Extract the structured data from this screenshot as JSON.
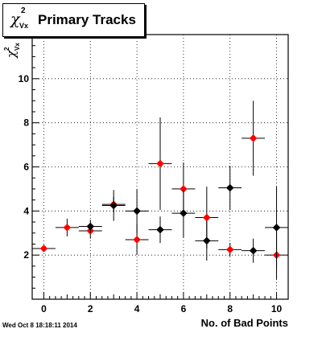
{
  "title": {
    "symbol": "χ",
    "superscript": "2",
    "subscript": "Vx",
    "text": "Primary Tracks"
  },
  "timestamp": "Wed Oct  8 18:18:11 2014",
  "chart_data": {
    "type": "scatter",
    "xlabel": "No. of Bad Points",
    "ylabel": {
      "symbol": "χ",
      "superscript": "2",
      "subscript": "Vx"
    },
    "xlim": [
      -0.5,
      10.5
    ],
    "ylim": [
      0,
      12
    ],
    "xticks": [
      0,
      2,
      4,
      6,
      8,
      10
    ],
    "yticks": [
      2,
      4,
      6,
      8,
      10
    ],
    "grid": true,
    "legend": "none",
    "series": [
      {
        "color": "#ff0000",
        "points": [
          {
            "x": 0,
            "y": 2.3,
            "err": 0.1
          },
          {
            "x": 1,
            "y": 3.25,
            "err": 0.4
          },
          {
            "x": 2,
            "y": 3.1,
            "err": 0.35
          },
          {
            "x": 3,
            "y": 4.3,
            "err": 0.35
          },
          {
            "x": 4,
            "y": 2.7,
            "err": 0.7
          },
          {
            "x": 5,
            "y": 6.15,
            "err": 2.1
          },
          {
            "x": 6,
            "y": 5.0,
            "err": 1.2
          },
          {
            "x": 7,
            "y": 3.7,
            "err": 1.4
          },
          {
            "x": 8,
            "y": 2.25,
            "err": 0.3
          },
          {
            "x": 9,
            "y": 7.3,
            "err": 1.7
          },
          {
            "x": 10,
            "y": 2.0,
            "err": 1.1
          }
        ]
      },
      {
        "color": "#000000",
        "points": [
          {
            "x": 2,
            "y": 3.3,
            "err": 0.3
          },
          {
            "x": 3,
            "y": 4.25,
            "err": 0.7
          },
          {
            "x": 4,
            "y": 4.0,
            "err": 1.0
          },
          {
            "x": 5,
            "y": 3.15,
            "err": 0.6
          },
          {
            "x": 6,
            "y": 3.9,
            "err": 1.1
          },
          {
            "x": 7,
            "y": 2.65,
            "err": 0.9
          },
          {
            "x": 8,
            "y": 5.05,
            "err": 1.0
          },
          {
            "x": 9,
            "y": 2.2,
            "err": 0.55
          },
          {
            "x": 10,
            "y": 3.25,
            "err": 1.85
          }
        ]
      }
    ],
    "colors": {
      "red": "#ff0000",
      "black": "#000000",
      "frame": "#000000"
    }
  }
}
